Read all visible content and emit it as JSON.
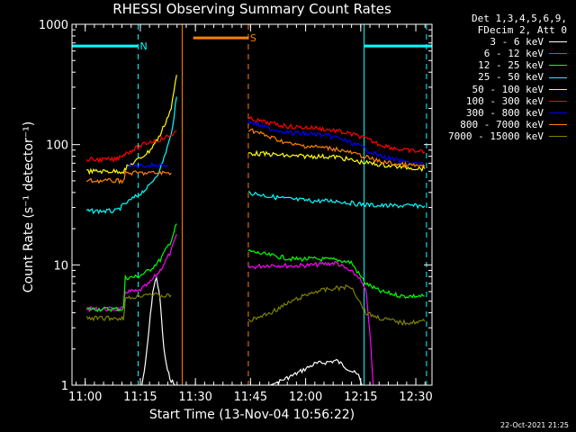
{
  "chart_data": {
    "type": "line",
    "title": "RHESSI Observing Summary Count Rates",
    "xlabel": "Start Time (13-Nov-04 10:56:22)",
    "ylabel": "Count Rate (s⁻¹ detector⁻¹)",
    "yscale": "log",
    "ylim": [
      1,
      1000
    ],
    "y_ticks": [
      "1",
      "10",
      "100",
      "1000"
    ],
    "x_ticks": [
      "11:00",
      "11:15",
      "11:30",
      "11:45",
      "12:00",
      "12:15",
      "12:30"
    ],
    "x_tick_minutes": [
      3.6,
      18.6,
      33.6,
      48.6,
      63.6,
      78.6,
      93.6
    ],
    "xlim_minutes": [
      0,
      98
    ],
    "legend_header": [
      "Det 1,3,4,5,6,9,",
      "FDecim 2, Att 0"
    ],
    "series": [
      {
        "name": "3 - 6 keV",
        "color": "#ffffff",
        "points": [
          [
            4,
            1
          ],
          [
            19,
            1
          ],
          [
            20,
            1.5
          ],
          [
            21,
            3
          ],
          [
            22,
            6
          ],
          [
            23,
            8
          ],
          [
            24,
            5
          ],
          [
            25,
            2
          ],
          [
            26,
            1.3
          ],
          [
            27,
            1.1
          ],
          [
            28,
            1
          ],
          [
            54,
            1
          ],
          [
            60,
            1.2
          ],
          [
            66,
            1.5
          ],
          [
            72,
            1.6
          ],
          [
            78,
            1.2
          ],
          [
            79,
            1
          ]
        ]
      },
      {
        "name": "6 - 12 keV",
        "color": "#ff00ff",
        "points": [
          [
            4,
            4.3
          ],
          [
            14,
            4.3
          ],
          [
            14.5,
            6
          ],
          [
            18,
            6
          ],
          [
            21,
            7
          ],
          [
            24,
            9
          ],
          [
            27,
            13
          ],
          [
            28.5,
            18
          ],
          [
            48,
            9.5
          ],
          [
            54,
            10
          ],
          [
            60,
            9.8
          ],
          [
            66,
            10
          ],
          [
            72,
            10.4
          ],
          [
            78,
            8
          ],
          [
            80,
            6
          ],
          [
            81,
            3
          ],
          [
            82,
            1
          ]
        ]
      },
      {
        "name": "12 - 25 keV",
        "color": "#00ff00",
        "points": [
          [
            4,
            4.3
          ],
          [
            14,
            4.3
          ],
          [
            14.5,
            7.8
          ],
          [
            18,
            8
          ],
          [
            21,
            9
          ],
          [
            24,
            11
          ],
          [
            27,
            16
          ],
          [
            28.5,
            22
          ],
          [
            48,
            13
          ],
          [
            54,
            12
          ],
          [
            60,
            11.2
          ],
          [
            66,
            11.2
          ],
          [
            72,
            11
          ],
          [
            76,
            10.5
          ],
          [
            78,
            8.5
          ],
          [
            80,
            7
          ],
          [
            84,
            6
          ],
          [
            90,
            5.5
          ],
          [
            96,
            5.5
          ]
        ]
      },
      {
        "name": "25 - 50 keV",
        "color": "#00ffff",
        "points": [
          [
            4,
            28
          ],
          [
            12,
            28
          ],
          [
            15,
            33
          ],
          [
            18,
            38
          ],
          [
            21,
            45
          ],
          [
            24,
            62
          ],
          [
            27,
            120
          ],
          [
            28.5,
            250
          ],
          [
            48,
            40
          ],
          [
            54,
            37
          ],
          [
            60,
            35
          ],
          [
            66,
            34
          ],
          [
            72,
            34
          ],
          [
            78,
            32
          ],
          [
            84,
            31
          ],
          [
            90,
            31
          ],
          [
            96,
            31
          ]
        ]
      },
      {
        "name": "50 - 100 keV",
        "color": "#ffff00",
        "points": [
          [
            4,
            60
          ],
          [
            14,
            60
          ],
          [
            15,
            65
          ],
          [
            18,
            75
          ],
          [
            21,
            88
          ],
          [
            24,
            120
          ],
          [
            27,
            200
          ],
          [
            28.5,
            380
          ],
          [
            48,
            85
          ],
          [
            54,
            83
          ],
          [
            60,
            80
          ],
          [
            66,
            80
          ],
          [
            72,
            79
          ],
          [
            78,
            72
          ],
          [
            84,
            68
          ],
          [
            90,
            65
          ],
          [
            96,
            63
          ]
        ]
      },
      {
        "name": "100 - 300 keV",
        "color": "#ff0000",
        "points": [
          [
            4,
            75
          ],
          [
            12,
            75
          ],
          [
            13,
            80
          ],
          [
            18,
            95
          ],
          [
            21,
            105
          ],
          [
            24,
            110
          ],
          [
            27,
            120
          ],
          [
            28.5,
            130
          ],
          [
            48,
            165
          ],
          [
            54,
            150
          ],
          [
            60,
            140
          ],
          [
            66,
            138
          ],
          [
            72,
            130
          ],
          [
            78,
            118
          ],
          [
            84,
            100
          ],
          [
            90,
            90
          ],
          [
            96,
            87
          ]
        ]
      },
      {
        "name": "300 - 800 keV",
        "color": "#0000ff",
        "points": [
          [
            15,
            66
          ],
          [
            18,
            67
          ],
          [
            21,
            67
          ],
          [
            24,
            68
          ],
          [
            26,
            68
          ],
          [
            48,
            155
          ],
          [
            54,
            135
          ],
          [
            60,
            125
          ],
          [
            66,
            122
          ],
          [
            72,
            115
          ],
          [
            78,
            98
          ],
          [
            84,
            80
          ],
          [
            90,
            72
          ],
          [
            96,
            68
          ]
        ]
      },
      {
        "name": "800 - 7000 keV",
        "color": "#ff8000",
        "points": [
          [
            4,
            50
          ],
          [
            14,
            50
          ],
          [
            14.5,
            58
          ],
          [
            18,
            58
          ],
          [
            21,
            58
          ],
          [
            24,
            58
          ],
          [
            27,
            58
          ],
          [
            48,
            135
          ],
          [
            54,
            115
          ],
          [
            60,
            100
          ],
          [
            66,
            96
          ],
          [
            72,
            92
          ],
          [
            78,
            82
          ],
          [
            84,
            72
          ],
          [
            90,
            68
          ],
          [
            96,
            66
          ]
        ]
      },
      {
        "name": "7000 - 15000 keV",
        "color": "#808000",
        "points": [
          [
            4,
            3.6
          ],
          [
            14,
            3.6
          ],
          [
            14.5,
            5.2
          ],
          [
            18,
            5.5
          ],
          [
            21,
            5.8
          ],
          [
            24,
            5.5
          ],
          [
            27,
            5.6
          ],
          [
            48,
            3.4
          ],
          [
            54,
            4
          ],
          [
            60,
            5
          ],
          [
            66,
            6
          ],
          [
            72,
            6.4
          ],
          [
            76,
            6.6
          ],
          [
            78,
            5.2
          ],
          [
            80,
            4
          ],
          [
            84,
            3.6
          ],
          [
            90,
            3.3
          ],
          [
            96,
            3.4
          ]
        ]
      }
    ],
    "spans": [
      {
        "label": "N",
        "color": "#00ffff",
        "x": [
          0,
          18
        ],
        "y": 660
      },
      {
        "label": "S",
        "color": "#ff8000",
        "x": [
          33,
          48
        ],
        "y": 770
      },
      {
        "label": "",
        "color": "#00ffff",
        "x": [
          79.5,
          98
        ],
        "y": 660
      }
    ],
    "vlines": [
      {
        "x": 18,
        "color": "#00ffff",
        "style": "dashed"
      },
      {
        "x": 30,
        "color": "#ff8000",
        "style": "solid"
      },
      {
        "x": 48,
        "color": "#ff8000",
        "style": "dashed"
      },
      {
        "x": 79.5,
        "color": "#00ffff",
        "style": "solid"
      },
      {
        "x": 96.5,
        "color": "#00ffff",
        "style": "dashed"
      }
    ]
  },
  "footer": {
    "timestamp": "22-Oct-2021 21:25"
  }
}
